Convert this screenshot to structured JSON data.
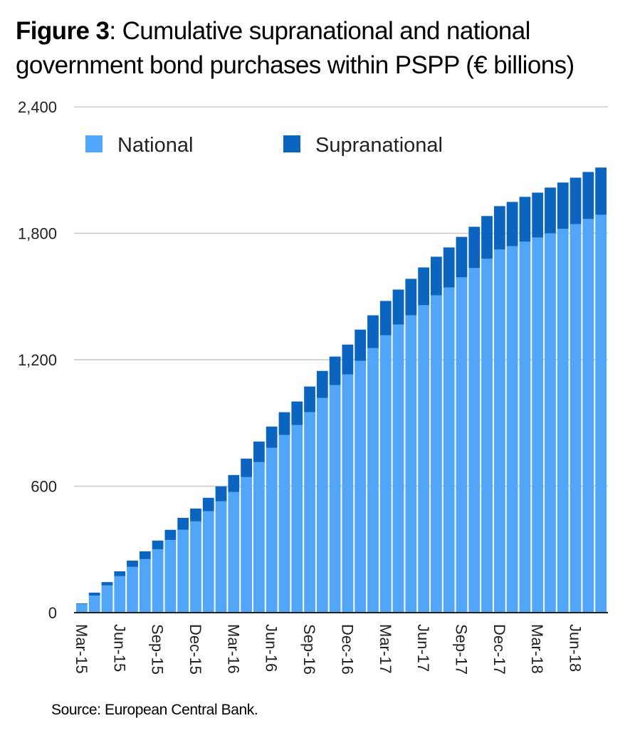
{
  "chart_data": {
    "type": "bar",
    "stacked": true,
    "title_bold": "Figure 3",
    "title": ": Cumulative supranational and national government bond purchases within PSPP (€ billions)",
    "title_line1": ": Cumulative supranational and national",
    "title_line2": "government bond purchases within PSPP (€ billions)",
    "source": "Source: European Central Bank.",
    "xlabel": "",
    "ylabel": "",
    "ylim": [
      0,
      2400
    ],
    "yticks": [
      0,
      600,
      1200,
      1800,
      2400
    ],
    "ytick_labels": [
      "0",
      "600",
      "1,200",
      "1,800",
      "2,400"
    ],
    "grid": true,
    "legend_position": "top-left",
    "categories": [
      "Mar-15",
      "Apr-15",
      "May-15",
      "Jun-15",
      "Jul-15",
      "Aug-15",
      "Sep-15",
      "Oct-15",
      "Nov-15",
      "Dec-15",
      "Jan-16",
      "Feb-16",
      "Mar-16",
      "Apr-16",
      "May-16",
      "Jun-16",
      "Jul-16",
      "Aug-16",
      "Sep-16",
      "Oct-16",
      "Nov-16",
      "Dec-16",
      "Jan-17",
      "Feb-17",
      "Mar-17",
      "Apr-17",
      "May-17",
      "Jun-17",
      "Jul-17",
      "Aug-17",
      "Sep-17",
      "Oct-17",
      "Nov-17",
      "Dec-17",
      "Jan-18",
      "Feb-18",
      "Mar-18",
      "Apr-18",
      "May-18",
      "Jun-18",
      "Jul-18",
      "Aug-18"
    ],
    "xtick_labels": [
      "Mar-15",
      "Jun-15",
      "Sep-15",
      "Dec-15",
      "Mar-16",
      "Jun-16",
      "Sep-16",
      "Dec-16",
      "Mar-17",
      "Jun-17",
      "Sep-17",
      "Dec-17",
      "Mar-18",
      "Jun-18"
    ],
    "series": [
      {
        "name": "National",
        "color": "#51a6f9",
        "values": [
          41,
          81,
          129,
          173,
          217,
          254,
          301,
          345,
          393,
          433,
          481,
          528,
          572,
          643,
          714,
          782,
          843,
          890,
          951,
          1019,
          1080,
          1130,
          1195,
          1255,
          1316,
          1367,
          1411,
          1459,
          1506,
          1543,
          1591,
          1635,
          1679,
          1723,
          1739,
          1760,
          1780,
          1800,
          1821,
          1844,
          1868,
          1888
        ]
      },
      {
        "name": "Supranational",
        "color": "#0c64c1",
        "values": [
          3,
          14,
          16,
          23,
          30,
          37,
          41,
          48,
          57,
          61,
          64,
          71,
          81,
          88,
          98,
          101,
          108,
          112,
          122,
          128,
          135,
          142,
          148,
          156,
          163,
          166,
          173,
          179,
          183,
          190,
          192,
          196,
          203,
          206,
          210,
          213,
          213,
          217,
          220,
          220,
          223,
          224
        ]
      }
    ]
  }
}
